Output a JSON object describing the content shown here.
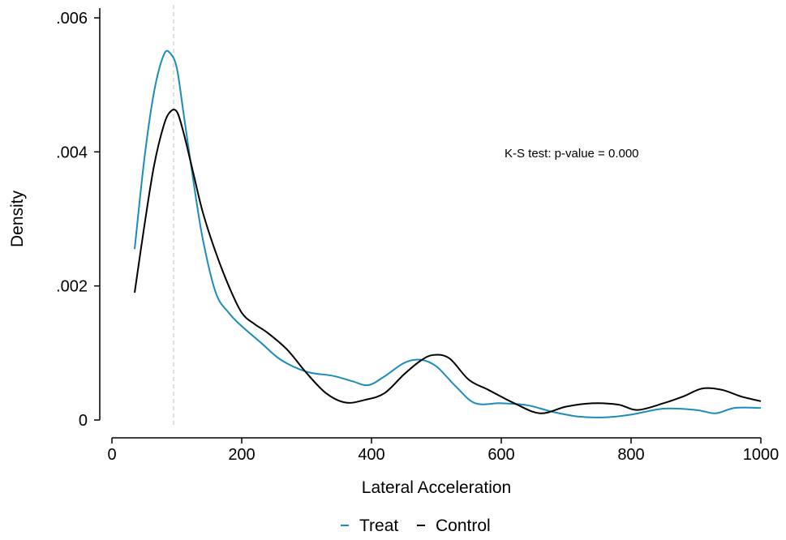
{
  "chart_data": {
    "type": "line",
    "title": "",
    "xlabel": "Lateral Acceleration",
    "ylabel": "Density",
    "xlim": [
      0,
      1000
    ],
    "ylim": [
      0,
      0.006
    ],
    "xticks": [
      0,
      200,
      400,
      600,
      800,
      1000
    ],
    "xtick_labels": [
      "0",
      "200",
      "400",
      "600",
      "800",
      "1000"
    ],
    "yticks": [
      0,
      0.002,
      0.004,
      0.006
    ],
    "ytick_labels": [
      "0",
      ".002",
      ".004",
      ".006"
    ],
    "grid": false,
    "legend_position": "bottom",
    "reference_line_x": 95,
    "annotation": {
      "text": "K-S test: p-value = 0.000",
      "x": 750,
      "y": 0.004
    },
    "series": [
      {
        "name": "Treat",
        "color": "#1a8cbb",
        "x": [
          35,
          50,
          65,
          80,
          90,
          100,
          110,
          125,
          140,
          160,
          180,
          200,
          230,
          260,
          300,
          340,
          370,
          395,
          420,
          450,
          475,
          500,
          530,
          560,
          600,
          640,
          680,
          720,
          760,
          800,
          850,
          900,
          930,
          960,
          1000
        ],
        "y": [
          0.00255,
          0.0039,
          0.0049,
          0.00545,
          0.00547,
          0.00525,
          0.0046,
          0.0036,
          0.0027,
          0.0019,
          0.0016,
          0.0014,
          0.00115,
          0.0009,
          0.00072,
          0.00066,
          0.00058,
          0.00052,
          0.00065,
          0.00085,
          0.0009,
          0.0008,
          0.0005,
          0.00025,
          0.00025,
          0.00022,
          0.00012,
          5e-05,
          4e-05,
          8e-05,
          0.00017,
          0.00015,
          0.0001,
          0.00018,
          0.00018
        ]
      },
      {
        "name": "Control",
        "color": "#000000",
        "x": [
          35,
          50,
          65,
          80,
          90,
          100,
          110,
          125,
          140,
          160,
          180,
          200,
          220,
          240,
          270,
          300,
          330,
          360,
          390,
          420,
          450,
          475,
          495,
          520,
          550,
          580,
          620,
          660,
          700,
          740,
          780,
          810,
          850,
          880,
          910,
          940,
          970,
          1000
        ],
        "y": [
          0.0019,
          0.0029,
          0.0038,
          0.0044,
          0.0046,
          0.0046,
          0.0043,
          0.0037,
          0.0031,
          0.0025,
          0.002,
          0.0016,
          0.00143,
          0.0013,
          0.00105,
          0.0007,
          0.0004,
          0.00026,
          0.0003,
          0.0004,
          0.00068,
          0.00088,
          0.00097,
          0.00092,
          0.0006,
          0.00045,
          0.00025,
          0.0001,
          0.0002,
          0.00025,
          0.00023,
          0.00015,
          0.00025,
          0.00035,
          0.00047,
          0.00045,
          0.00035,
          0.00028
        ]
      }
    ]
  }
}
